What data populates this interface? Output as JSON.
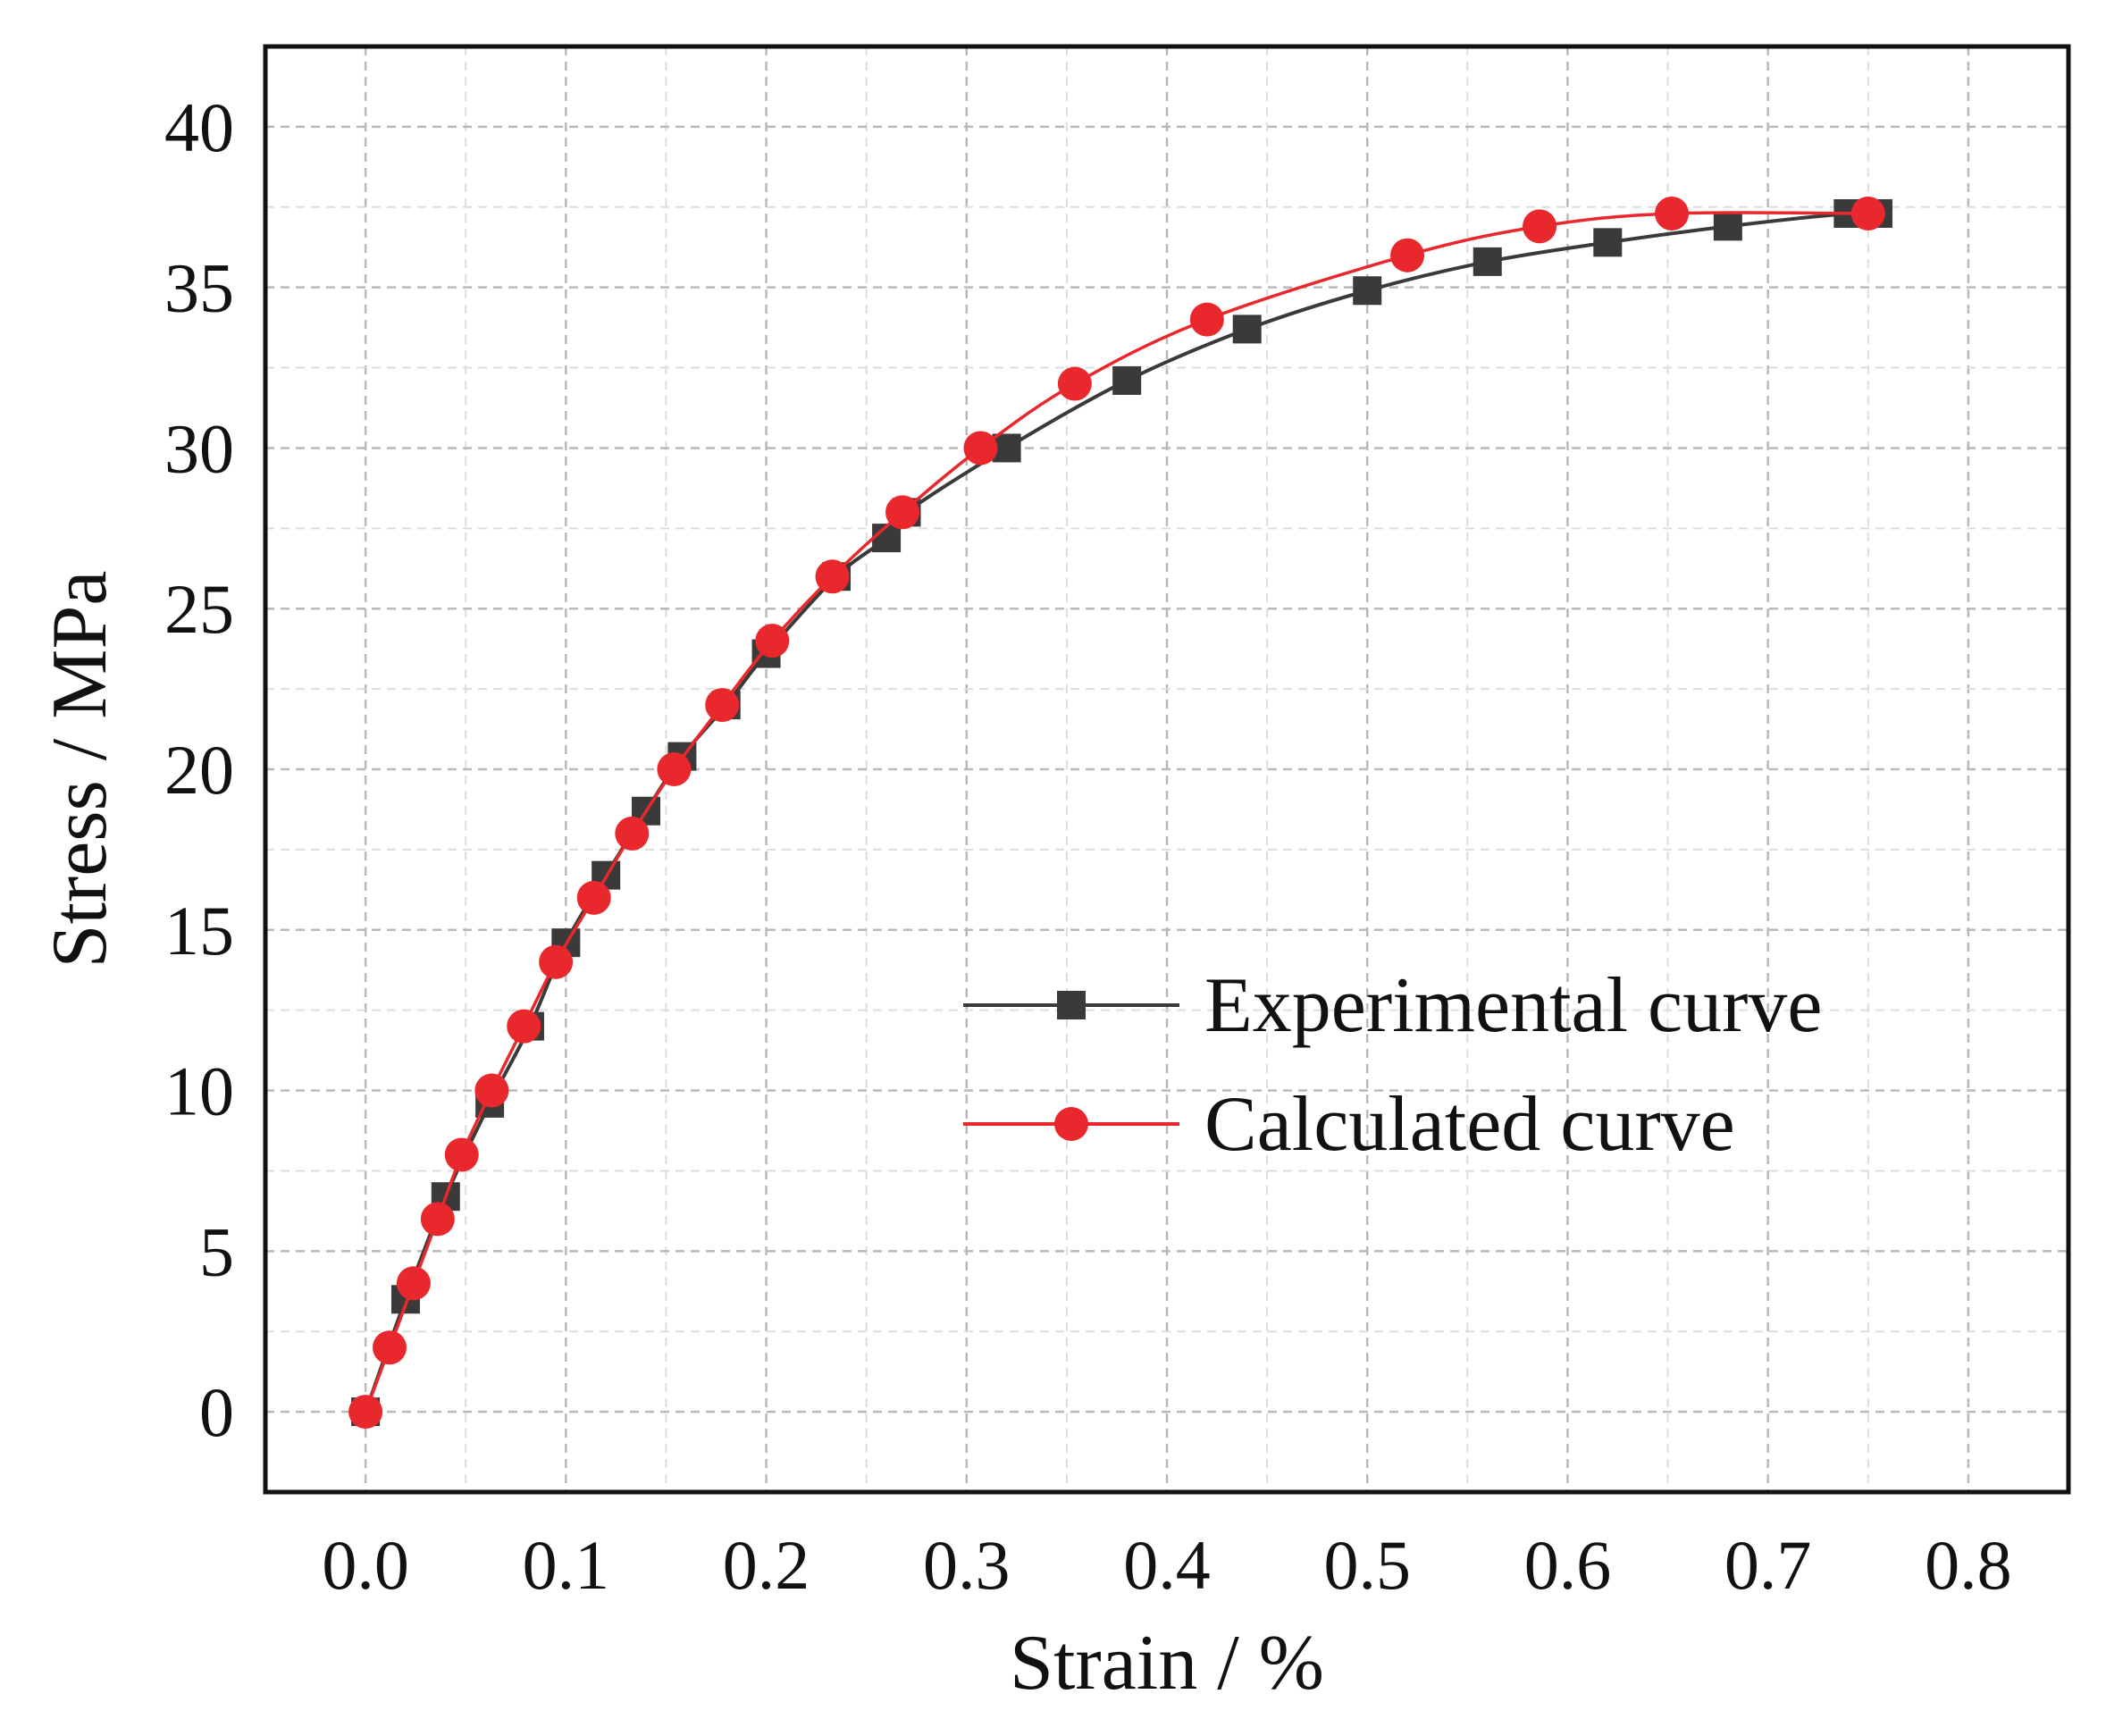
{
  "chart_data": {
    "type": "line",
    "title": "",
    "xlabel": "Strain / %",
    "ylabel": "Stress / MPa",
    "xlim": [
      -0.05,
      0.85
    ],
    "ylim": [
      -2.5,
      42.5
    ],
    "xticks": [
      "0.0",
      "0.1",
      "0.2",
      "0.3",
      "0.4",
      "0.5",
      "0.6",
      "0.7",
      "0.8"
    ],
    "yticks": [
      "0",
      "5",
      "10",
      "15",
      "20",
      "25",
      "30",
      "35",
      "40"
    ],
    "grid": true,
    "legend_position": "right-center",
    "series": [
      {
        "name": "Experimental curve",
        "color": "#3a3a3a",
        "marker": "square",
        "x": [
          0.0,
          0.02,
          0.04,
          0.062,
          0.082,
          0.1,
          0.12,
          0.14,
          0.158,
          0.18,
          0.2,
          0.235,
          0.26,
          0.27,
          0.32,
          0.38,
          0.44,
          0.5,
          0.56,
          0.62,
          0.68,
          0.74,
          0.755
        ],
        "y": [
          0.0,
          3.5,
          6.7,
          9.6,
          12.0,
          14.6,
          16.7,
          18.7,
          20.4,
          22.0,
          23.6,
          26.0,
          27.2,
          28.0,
          30.0,
          32.1,
          33.7,
          34.9,
          35.8,
          36.4,
          36.9,
          37.3,
          37.3
        ]
      },
      {
        "name": "Calculated curve",
        "color": "#e8282c",
        "marker": "circle",
        "x": [
          0.0,
          0.012,
          0.024,
          0.036,
          0.048,
          0.063,
          0.079,
          0.095,
          0.114,
          0.133,
          0.154,
          0.178,
          0.203,
          0.233,
          0.268,
          0.307,
          0.354,
          0.42,
          0.52,
          0.586,
          0.652,
          0.75
        ],
        "y": [
          0.0,
          2.0,
          4.0,
          6.0,
          8.0,
          10.0,
          12.0,
          14.0,
          16.0,
          18.0,
          20.0,
          22.0,
          24.0,
          26.0,
          28.0,
          30.0,
          32.0,
          34.0,
          36.0,
          36.9,
          37.3,
          37.3
        ]
      }
    ]
  }
}
